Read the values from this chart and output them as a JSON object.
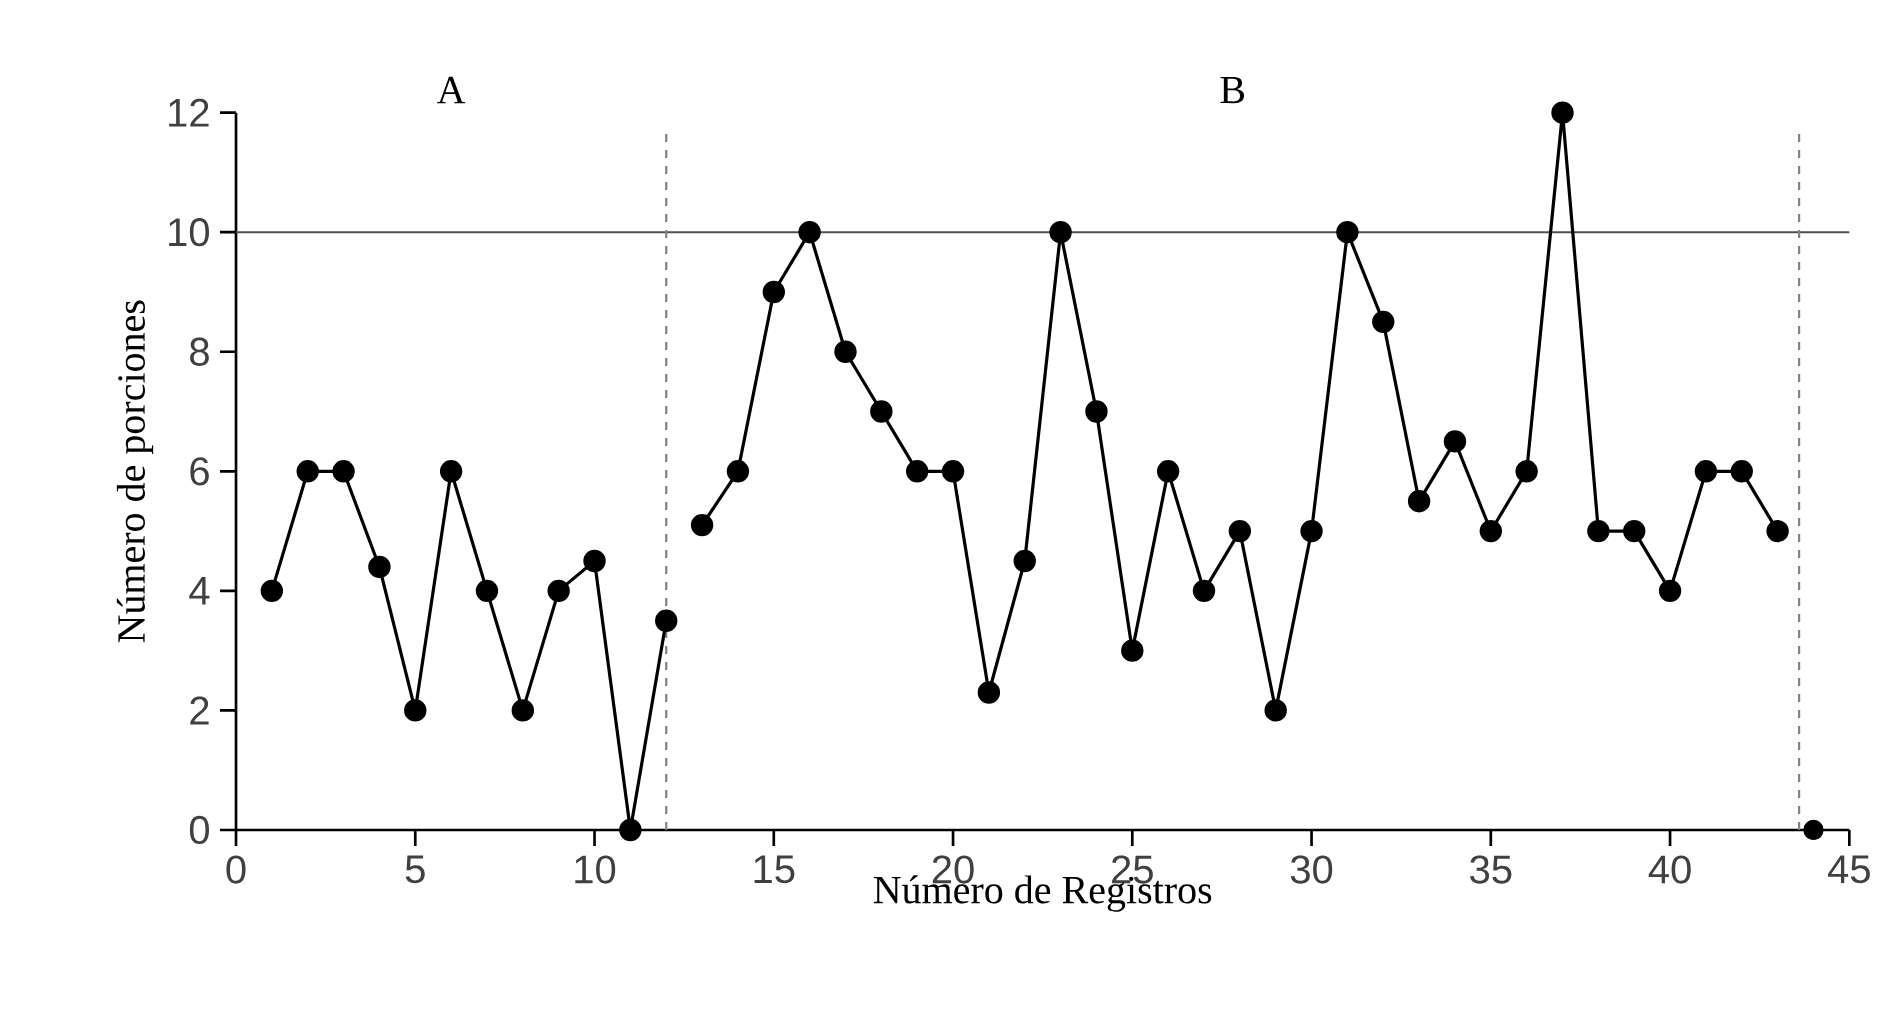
{
  "chart_data": {
    "type": "line",
    "xlabel": "Número de Registros",
    "ylabel": "Número de porciones",
    "annotations": [
      "A",
      "B"
    ],
    "series": [
      {
        "color": "#000000",
        "x": [
          1,
          2,
          3,
          4,
          5,
          6,
          7,
          8,
          9,
          10,
          11,
          12
        ],
        "values": [
          4,
          6,
          6,
          4.4,
          2,
          6,
          4,
          2,
          4,
          4.5,
          0,
          3.5
        ]
      },
      {
        "color": "#000000",
        "x": [
          13,
          14,
          15,
          16,
          17,
          18,
          19,
          20,
          21,
          22,
          23,
          24,
          25,
          26,
          27,
          28,
          29,
          30,
          31,
          32,
          33,
          34,
          35,
          36,
          37,
          38,
          39,
          40,
          41,
          42,
          43
        ],
        "values": [
          5.1,
          6,
          9,
          10,
          8,
          7,
          6,
          6,
          2.3,
          4.5,
          10,
          7,
          3,
          6,
          4,
          5,
          2,
          5,
          10,
          8.5,
          5.5,
          6.5,
          5,
          6,
          12,
          5,
          5,
          4,
          6,
          6,
          5
        ]
      },
      {
        "type": "scatter",
        "color": "#000000",
        "x": [
          44
        ],
        "values": [
          0
        ]
      }
    ],
    "xlim": [
      0,
      45
    ],
    "xticks": [
      0,
      5,
      10,
      15,
      20,
      25,
      30,
      35,
      40,
      45
    ],
    "ylim": [
      0,
      12
    ],
    "yticks": [
      0,
      2,
      4,
      6,
      8,
      10,
      12
    ],
    "ref_lines": [
      {
        "axis": "y",
        "value": 10,
        "color": "#505050",
        "line_style": "solid"
      },
      {
        "axis": "x",
        "value": 12,
        "color": "#808080",
        "line_style": "dashed"
      },
      {
        "axis": "x",
        "value": 43.6,
        "color": "#808080",
        "line_style": "dashed"
      }
    ],
    "marker": "circle",
    "line_style": "solid"
  }
}
